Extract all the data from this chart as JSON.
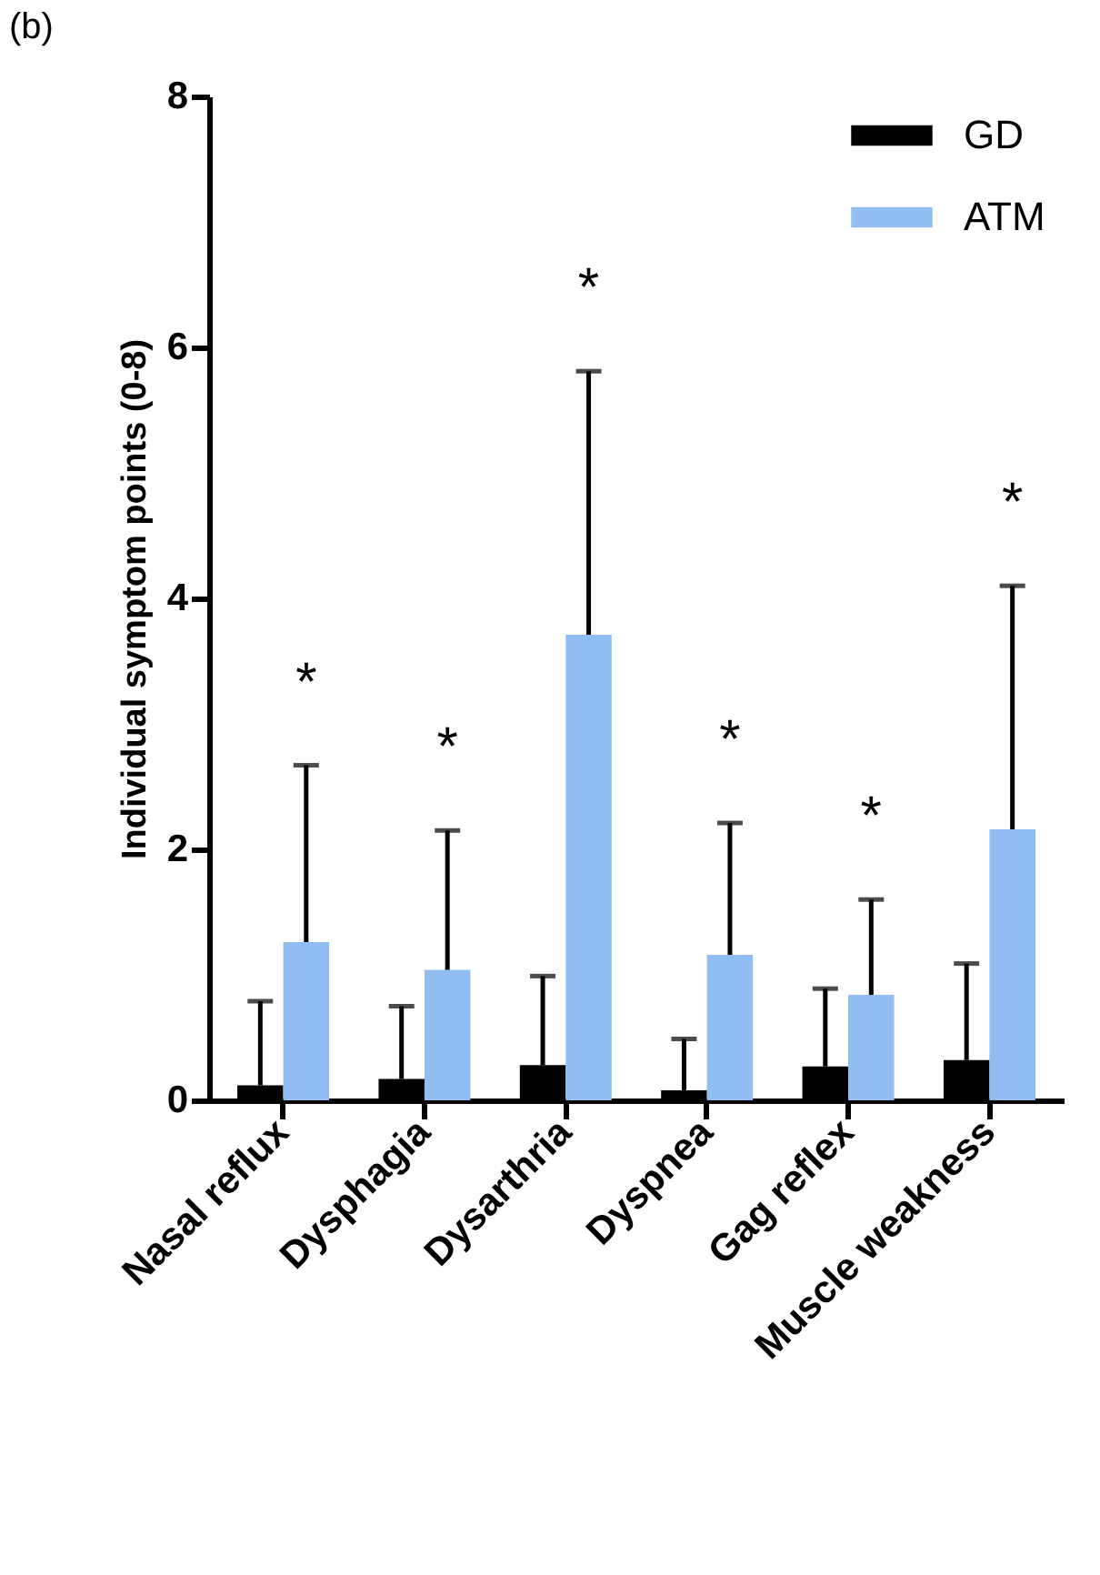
{
  "chart_data": {
    "type": "bar",
    "ylabel": "Individual symptom points (0-8)",
    "categories": [
      "Nasal reflux",
      "Dysphagia",
      "Dysarthria",
      "Dyspnea",
      "Gag reflex",
      "Muscle weakness"
    ],
    "series": [
      {
        "name": "GD",
        "color": "#000000",
        "values": [
          0.12,
          0.17,
          0.28,
          0.08,
          0.27,
          0.32
        ],
        "errors": [
          [
            0.12,
            0.79
          ],
          [
            0.17,
            0.75
          ],
          [
            0.28,
            0.99
          ],
          [
            0.08,
            0.49
          ],
          [
            0.27,
            0.89
          ],
          [
            0.32,
            1.09
          ]
        ]
      },
      {
        "name": "ATM",
        "color": "#92bdf3",
        "values": [
          1.26,
          1.04,
          3.71,
          1.16,
          0.84,
          2.16
        ],
        "errors": [
          [
            1.26,
            2.67
          ],
          [
            1.04,
            2.15
          ],
          [
            3.71,
            5.81
          ],
          [
            1.16,
            2.21
          ],
          [
            0.84,
            1.6
          ],
          [
            2.16,
            4.1
          ]
        ]
      }
    ],
    "ylim": [
      0,
      8
    ],
    "yticks": [
      0,
      2,
      4,
      6,
      8
    ],
    "grid": false,
    "legend": "top right",
    "annotations": [
      "(b)",
      "*",
      "*",
      "*",
      "*",
      "*",
      "*"
    ]
  }
}
